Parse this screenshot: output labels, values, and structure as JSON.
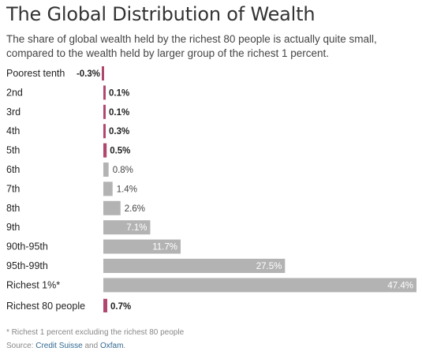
{
  "header": {
    "title": "The Global Distribution of Wealth",
    "subtitle": "The share of global wealth held by the richest 80 people is actually quite small, compared to the wealth held by larger group of the richest 1 percent."
  },
  "footer": {
    "footnote": "* Richest 1 percent excluding the richest 80 people",
    "source_prefix": "Source: ",
    "source_1": "Credit Suisse",
    "source_and": " and ",
    "source_2": "Oxfam",
    "source_end": "."
  },
  "colors": {
    "highlight": "#b0476e",
    "gray_bar": "#b3b3b3"
  },
  "chart_data": {
    "type": "bar",
    "orientation": "horizontal",
    "categories": [
      "Poorest tenth",
      "2nd",
      "3rd",
      "4th",
      "5th",
      "6th",
      "7th",
      "8th",
      "9th",
      "90th-95th",
      "95th-99th",
      "Richest 1%*",
      "Richest 80 people"
    ],
    "values": [
      -0.3,
      0.1,
      0.1,
      0.3,
      0.5,
      0.8,
      1.4,
      2.6,
      7.1,
      11.7,
      27.5,
      47.4,
      0.7
    ],
    "value_labels": [
      "-0.3%",
      "0.1%",
      "0.1%",
      "0.3%",
      "0.5%",
      "0.8%",
      "1.4%",
      "2.6%",
      "7.1%",
      "11.7%",
      "27.5%",
      "47.4%",
      "0.7%"
    ],
    "bar_colors": [
      "#b0476e",
      "#b0476e",
      "#b0476e",
      "#b0476e",
      "#b0476e",
      "#b3b3b3",
      "#b3b3b3",
      "#b3b3b3",
      "#b3b3b3",
      "#b3b3b3",
      "#b3b3b3",
      "#b3b3b3",
      "#b0476e"
    ],
    "title": "The Global Distribution of Wealth",
    "xlabel": "",
    "ylabel": "",
    "xlim": [
      0,
      47.4
    ],
    "grid": false
  }
}
